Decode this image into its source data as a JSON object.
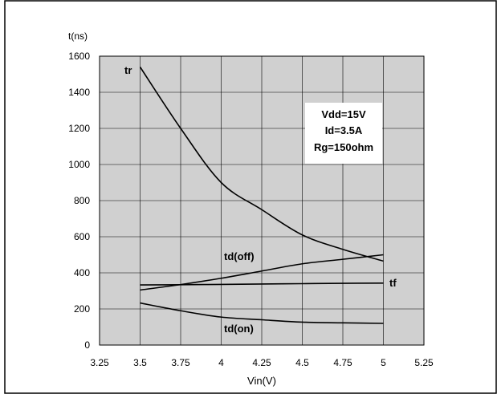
{
  "chart_data": {
    "type": "line",
    "title": "",
    "xlabel": "Vin(V)",
    "ylabel": "t(ns)",
    "xlim": [
      3.25,
      5.25
    ],
    "ylim": [
      0,
      1600
    ],
    "x_ticks": [
      "3.25",
      "3.5",
      "3.75",
      "4",
      "4.25",
      "4.5",
      "4.75",
      "5",
      "5.25"
    ],
    "y_ticks": [
      "0",
      "200",
      "400",
      "600",
      "800",
      "1000",
      "1200",
      "1400",
      "1600"
    ],
    "grid": true,
    "series": [
      {
        "name": "tr",
        "x": [
          3.5,
          3.75,
          4.0,
          4.25,
          4.5,
          4.75,
          5.0
        ],
        "y": [
          1540,
          1200,
          900,
          750,
          610,
          530,
          465
        ]
      },
      {
        "name": "tf",
        "x": [
          3.5,
          3.75,
          4.0,
          4.25,
          4.5,
          4.75,
          5.0
        ],
        "y": [
          333,
          334,
          336,
          338,
          340,
          342,
          343
        ]
      },
      {
        "name": "td(off)",
        "x": [
          3.5,
          3.75,
          4.0,
          4.25,
          4.5,
          4.75,
          5.0
        ],
        "y": [
          305,
          335,
          370,
          410,
          450,
          475,
          500
        ]
      },
      {
        "name": "td(on)",
        "x": [
          3.5,
          3.75,
          4.0,
          4.25,
          4.5,
          4.75,
          5.0
        ],
        "y": [
          233,
          190,
          155,
          140,
          127,
          123,
          120
        ]
      }
    ],
    "annotations": [
      "Vdd=15V",
      "Id=3.5A",
      "Rg=150ohm"
    ]
  }
}
